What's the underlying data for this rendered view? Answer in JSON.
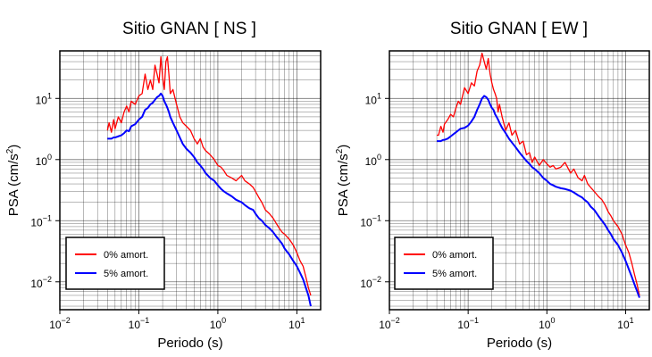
{
  "chart_data": [
    {
      "type": "line",
      "title": "Sitio GNAN [ NS ]",
      "xlabel": "Periodo (s)",
      "ylabel_base": "PSA (cm/s",
      "ylabel_sup": "2",
      "ylabel_close": ")",
      "xscale": "log",
      "yscale": "log",
      "xlim": [
        0.01,
        20
      ],
      "ylim": [
        0.0035,
        60
      ],
      "grid": true,
      "legend_position": "bottom-left",
      "x_ticks": [
        {
          "base": "10",
          "exp": "−2"
        },
        {
          "base": "10",
          "exp": "−1"
        },
        {
          "base": "10",
          "exp": "0"
        },
        {
          "base": "10",
          "exp": "1"
        }
      ],
      "y_ticks": [
        {
          "base": "10",
          "exp": "−2"
        },
        {
          "base": "10",
          "exp": "−1"
        },
        {
          "base": "10",
          "exp": "0"
        },
        {
          "base": "10",
          "exp": "1"
        }
      ],
      "x": [
        0.04,
        0.042,
        0.045,
        0.048,
        0.05,
        0.055,
        0.06,
        0.065,
        0.07,
        0.075,
        0.08,
        0.09,
        0.1,
        0.11,
        0.12,
        0.13,
        0.14,
        0.15,
        0.16,
        0.17,
        0.18,
        0.19,
        0.2,
        0.21,
        0.22,
        0.23,
        0.24,
        0.25,
        0.27,
        0.3,
        0.33,
        0.36,
        0.4,
        0.45,
        0.5,
        0.55,
        0.6,
        0.65,
        0.7,
        0.8,
        0.9,
        1.0,
        1.1,
        1.2,
        1.3,
        1.5,
        1.7,
        2.0,
        2.2,
        2.5,
        2.8,
        3.0,
        3.3,
        3.6,
        4.0,
        4.5,
        5.0,
        5.5,
        6.0,
        6.5,
        7.0,
        8.0,
        9.0,
        10.0,
        11.0,
        12.0,
        13.0,
        14.0,
        15.0
      ],
      "series": [
        {
          "name": "0% amort.",
          "color": "#ff0000",
          "values": [
            3.0,
            4.0,
            2.8,
            4.5,
            3.2,
            5.0,
            4.0,
            6.0,
            7.5,
            6.0,
            9.0,
            8.0,
            11.0,
            12.0,
            25.0,
            14.0,
            20.0,
            14.0,
            35.0,
            25.0,
            18.0,
            48.0,
            22.0,
            14.0,
            40.0,
            48.0,
            25.0,
            12.0,
            14.0,
            8.0,
            5.0,
            4.0,
            3.5,
            3.0,
            2.2,
            1.8,
            2.2,
            1.6,
            1.4,
            1.2,
            1.0,
            0.8,
            0.75,
            0.65,
            0.55,
            0.5,
            0.45,
            0.55,
            0.45,
            0.4,
            0.35,
            0.3,
            0.24,
            0.2,
            0.15,
            0.13,
            0.11,
            0.09,
            0.075,
            0.065,
            0.06,
            0.05,
            0.04,
            0.03,
            0.022,
            0.018,
            0.012,
            0.008,
            0.006
          ]
        },
        {
          "name": "5% amort.",
          "color": "#0000ff",
          "values": [
            2.2,
            2.2,
            2.2,
            2.3,
            2.3,
            2.4,
            2.5,
            2.7,
            3.0,
            2.9,
            3.5,
            3.8,
            4.5,
            5.0,
            6.5,
            7.0,
            8.0,
            8.5,
            9.5,
            10.5,
            11.0,
            12.0,
            11.0,
            9.0,
            8.0,
            7.0,
            6.0,
            5.0,
            4.0,
            3.0,
            2.3,
            1.8,
            1.5,
            1.3,
            1.1,
            0.9,
            0.8,
            0.7,
            0.6,
            0.5,
            0.45,
            0.38,
            0.33,
            0.3,
            0.28,
            0.25,
            0.22,
            0.2,
            0.18,
            0.16,
            0.15,
            0.13,
            0.11,
            0.1,
            0.085,
            0.075,
            0.065,
            0.055,
            0.048,
            0.042,
            0.035,
            0.028,
            0.022,
            0.018,
            0.014,
            0.011,
            0.008,
            0.006,
            0.004
          ]
        }
      ]
    },
    {
      "type": "line",
      "title": "Sitio GNAN [ EW ]",
      "xlabel": "Periodo (s)",
      "ylabel_base": "PSA (cm/s",
      "ylabel_sup": "2",
      "ylabel_close": ")",
      "xscale": "log",
      "yscale": "log",
      "xlim": [
        0.01,
        20
      ],
      "ylim": [
        0.0035,
        60
      ],
      "grid": true,
      "legend_position": "bottom-left",
      "x_ticks": [
        {
          "base": "10",
          "exp": "−2"
        },
        {
          "base": "10",
          "exp": "−1"
        },
        {
          "base": "10",
          "exp": "0"
        },
        {
          "base": "10",
          "exp": "1"
        }
      ],
      "y_ticks": [
        {
          "base": "10",
          "exp": "−2"
        },
        {
          "base": "10",
          "exp": "−1"
        },
        {
          "base": "10",
          "exp": "0"
        },
        {
          "base": "10",
          "exp": "1"
        }
      ],
      "x": [
        0.04,
        0.042,
        0.045,
        0.048,
        0.05,
        0.055,
        0.06,
        0.065,
        0.07,
        0.075,
        0.08,
        0.09,
        0.1,
        0.11,
        0.12,
        0.13,
        0.14,
        0.15,
        0.16,
        0.17,
        0.18,
        0.19,
        0.2,
        0.21,
        0.22,
        0.23,
        0.24,
        0.25,
        0.27,
        0.3,
        0.33,
        0.36,
        0.4,
        0.45,
        0.5,
        0.55,
        0.6,
        0.65,
        0.7,
        0.8,
        0.9,
        1.0,
        1.1,
        1.2,
        1.3,
        1.5,
        1.7,
        2.0,
        2.2,
        2.5,
        2.8,
        3.0,
        3.3,
        3.6,
        4.0,
        4.5,
        5.0,
        5.5,
        6.0,
        6.5,
        7.0,
        8.0,
        9.0,
        10.0,
        11.0,
        12.0,
        13.0,
        14.0,
        15.0
      ],
      "series": [
        {
          "name": "0% amort.",
          "color": "#ff0000",
          "values": [
            2.5,
            2.5,
            3.5,
            2.8,
            3.8,
            4.5,
            5.5,
            5.0,
            7.0,
            9.0,
            8.0,
            15.0,
            12.0,
            18.0,
            16.0,
            28.0,
            35.0,
            55.0,
            40.0,
            30.0,
            45.0,
            25.0,
            18.0,
            14.0,
            12.0,
            10.0,
            6.0,
            8.0,
            5.0,
            3.0,
            4.0,
            2.5,
            3.0,
            1.8,
            2.0,
            1.2,
            1.3,
            0.9,
            1.1,
            0.8,
            1.0,
            0.85,
            0.75,
            0.8,
            0.7,
            0.75,
            0.9,
            0.6,
            0.7,
            0.5,
            0.45,
            0.55,
            0.4,
            0.35,
            0.3,
            0.25,
            0.22,
            0.18,
            0.14,
            0.12,
            0.1,
            0.08,
            0.06,
            0.04,
            0.03,
            0.02,
            0.013,
            0.009,
            0.006
          ]
        },
        {
          "name": "5% amort.",
          "color": "#0000ff",
          "values": [
            2.0,
            2.0,
            2.0,
            2.1,
            2.1,
            2.2,
            2.4,
            2.6,
            2.8,
            3.0,
            3.2,
            3.3,
            3.6,
            4.2,
            5.0,
            6.5,
            8.0,
            10.0,
            11.0,
            10.5,
            9.5,
            8.0,
            7.0,
            6.5,
            5.5,
            5.0,
            4.5,
            4.0,
            3.3,
            2.7,
            2.2,
            1.9,
            1.6,
            1.3,
            1.1,
            0.95,
            0.85,
            0.75,
            0.7,
            0.6,
            0.5,
            0.45,
            0.4,
            0.38,
            0.36,
            0.34,
            0.33,
            0.31,
            0.29,
            0.26,
            0.24,
            0.22,
            0.2,
            0.17,
            0.15,
            0.12,
            0.1,
            0.085,
            0.07,
            0.06,
            0.05,
            0.04,
            0.03,
            0.022,
            0.016,
            0.012,
            0.009,
            0.007,
            0.0055
          ]
        }
      ]
    }
  ]
}
